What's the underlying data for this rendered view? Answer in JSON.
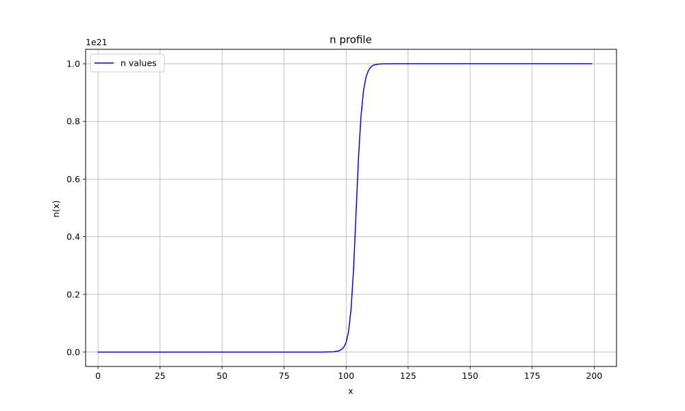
{
  "chart_data": {
    "type": "line",
    "title": "n profile",
    "xlabel": "x",
    "ylabel": "n(x)",
    "y_offset_label": "1e21",
    "xlim": [
      -5,
      209
    ],
    "ylim": [
      -0.05,
      1.05
    ],
    "x_ticks": [
      0,
      25,
      50,
      75,
      100,
      125,
      150,
      175,
      200
    ],
    "x_tick_labels": [
      "0",
      "25",
      "50",
      "75",
      "100",
      "125",
      "150",
      "175",
      "200"
    ],
    "y_ticks": [
      0.0,
      0.2,
      0.4,
      0.6,
      0.8,
      1.0
    ],
    "y_tick_labels": [
      "0.0",
      "0.2",
      "0.4",
      "0.6",
      "0.8",
      "1.0"
    ],
    "grid": true,
    "legend_position": "top-left",
    "series": [
      {
        "name": "n values",
        "color": "#0000ff",
        "x": [
          0,
          10,
          20,
          30,
          40,
          50,
          60,
          70,
          80,
          90,
          95,
          97,
          98,
          99,
          100,
          101,
          102,
          103,
          104,
          105,
          106,
          107,
          108,
          109,
          110,
          111,
          112,
          113,
          114,
          115,
          116,
          118,
          120,
          122,
          125,
          130,
          140,
          150,
          160,
          170,
          180,
          190,
          199
        ],
        "values": [
          0,
          0,
          0,
          0,
          0,
          0,
          0,
          0,
          0,
          0,
          0.001,
          0.004,
          0.008,
          0.016,
          0.033,
          0.072,
          0.149,
          0.286,
          0.48,
          0.675,
          0.818,
          0.906,
          0.953,
          0.977,
          0.989,
          0.995,
          0.997,
          0.9986,
          0.9993,
          0.9997,
          0.9998,
          0.99995,
          1,
          1,
          1,
          1,
          1,
          1,
          1,
          1,
          1,
          1,
          1
        ]
      }
    ]
  }
}
